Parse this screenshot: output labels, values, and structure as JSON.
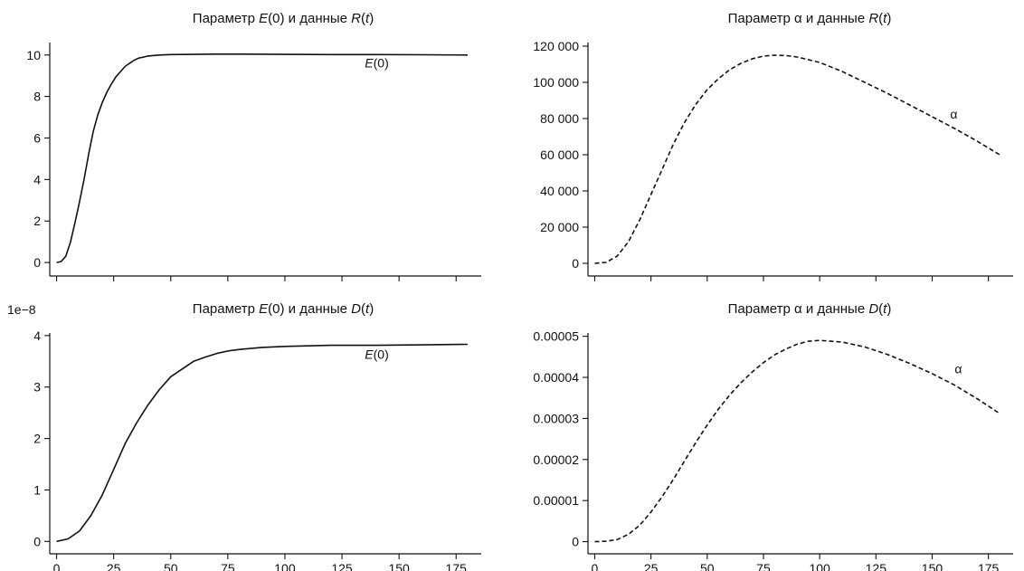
{
  "chart_data": [
    {
      "type": "line",
      "title_parts": [
        "Параметр ",
        "E",
        "(0) и данные ",
        "R",
        "(",
        "t",
        ")"
      ],
      "x": [
        0,
        2,
        4,
        6,
        8,
        10,
        12,
        14,
        16,
        18,
        20,
        22,
        24,
        26,
        28,
        30,
        32,
        34,
        36,
        38,
        40,
        45,
        50,
        60,
        70,
        80,
        100,
        120,
        140,
        160,
        180
      ],
      "series": [
        {
          "name": "E(0)",
          "values": [
            0,
            0.05,
            0.3,
            0.95,
            1.9,
            2.9,
            4.0,
            5.2,
            6.3,
            7.1,
            7.7,
            8.2,
            8.6,
            8.95,
            9.2,
            9.45,
            9.6,
            9.75,
            9.85,
            9.9,
            9.95,
            10.0,
            10.02,
            10.03,
            10.04,
            10.04,
            10.03,
            10.02,
            10.02,
            10.01,
            10.0
          ],
          "style": "solid"
        }
      ],
      "annotation": {
        "text": "E(0)",
        "x": 135,
        "y": 9.4
      },
      "xlim": [
        -3,
        186
      ],
      "ylim": [
        -0.3,
        10.6
      ],
      "xticks": [
        0,
        25,
        50,
        75,
        100,
        125,
        150,
        175
      ],
      "yticks": [
        0,
        2,
        4,
        6,
        8,
        10
      ],
      "ytick_labels": [
        "0",
        "2",
        "4",
        "6",
        "8",
        "10"
      ],
      "xtick_labels": [],
      "yscale_label": "",
      "grid": false
    },
    {
      "type": "line",
      "title_parts": [
        "Параметр α и данные ",
        "R",
        "(",
        "t",
        ")"
      ],
      "x": [
        0,
        5,
        10,
        15,
        20,
        25,
        30,
        35,
        40,
        45,
        50,
        55,
        60,
        65,
        70,
        75,
        80,
        85,
        90,
        100,
        110,
        120,
        130,
        140,
        150,
        160,
        170,
        180
      ],
      "series": [
        {
          "name": "α",
          "values": [
            0,
            500,
            4000,
            12000,
            24000,
            38000,
            52000,
            66000,
            78000,
            88000,
            96000,
            102000,
            107000,
            110500,
            113000,
            114500,
            115000,
            114800,
            114000,
            111000,
            106000,
            100000,
            94000,
            87500,
            81000,
            74500,
            67500,
            60000
          ],
          "style": "dashed"
        }
      ],
      "annotation": {
        "text": "α",
        "x": 158,
        "y": 80000
      },
      "xlim": [
        -3,
        186
      ],
      "ylim": [
        -3000,
        122000
      ],
      "xticks": [
        0,
        25,
        50,
        75,
        100,
        125,
        150,
        175
      ],
      "yticks": [
        0,
        20000,
        40000,
        60000,
        80000,
        100000,
        120000
      ],
      "ytick_labels": [
        "0",
        "20 000",
        "40 000",
        "60 000",
        "80 000",
        "100 000",
        "120 000"
      ],
      "xtick_labels": [],
      "yscale_label": "",
      "grid": false
    },
    {
      "type": "line",
      "title_parts": [
        "Параметр ",
        "E",
        "(0) и данные ",
        "D",
        "(",
        "t",
        ")"
      ],
      "x": [
        0,
        5,
        10,
        15,
        20,
        25,
        30,
        35,
        40,
        45,
        50,
        55,
        60,
        65,
        70,
        75,
        80,
        90,
        100,
        120,
        140,
        160,
        180
      ],
      "series": [
        {
          "name": "E(0)",
          "values": [
            0,
            0.05,
            0.2,
            0.5,
            0.9,
            1.4,
            1.9,
            2.3,
            2.65,
            2.95,
            3.2,
            3.35,
            3.5,
            3.58,
            3.65,
            3.7,
            3.73,
            3.77,
            3.79,
            3.81,
            3.81,
            3.82,
            3.83
          ],
          "style": "solid"
        }
      ],
      "annotation": {
        "text": "E(0)",
        "x": 135,
        "y": 3.55
      },
      "xlim": [
        -3,
        186
      ],
      "ylim": [
        -0.1,
        4.05
      ],
      "xticks": [
        0,
        25,
        50,
        75,
        100,
        125,
        150,
        175
      ],
      "yticks": [
        0,
        1,
        2,
        3,
        4
      ],
      "ytick_labels": [
        "0",
        "1",
        "2",
        "3",
        "4"
      ],
      "xtick_labels": [
        "0",
        "25",
        "50",
        "75",
        "100",
        "125",
        "150",
        "175"
      ],
      "yscale_label": "1e−8",
      "grid": false
    },
    {
      "type": "line",
      "title_parts": [
        "Параметр α и данные ",
        "D",
        "(",
        "t",
        ")"
      ],
      "x": [
        0,
        5,
        10,
        15,
        20,
        25,
        30,
        35,
        40,
        45,
        50,
        55,
        60,
        65,
        70,
        75,
        80,
        85,
        90,
        95,
        100,
        110,
        120,
        130,
        140,
        150,
        160,
        170,
        180
      ],
      "series": [
        {
          "name": "α",
          "values": [
            0,
            1e-07,
            5e-07,
            1.8e-06,
            4e-06,
            7.2e-06,
            1.1e-05,
            1.52e-05,
            1.97e-05,
            2.42e-05,
            2.84e-05,
            3.23e-05,
            3.57e-05,
            3.87e-05,
            4.13e-05,
            4.36e-05,
            4.55e-05,
            4.69e-05,
            4.81e-05,
            4.88e-05,
            4.9e-05,
            4.86e-05,
            4.74e-05,
            4.56e-05,
            4.34e-05,
            4.09e-05,
            3.81e-05,
            3.48e-05,
            3.12e-05
          ],
          "style": "dashed"
        }
      ],
      "annotation": {
        "text": "α",
        "x": 160,
        "y": 4.1e-05
      },
      "xlim": [
        -3,
        186
      ],
      "ylim": [
        -1.2e-06,
        5.08e-05
      ],
      "xticks": [
        0,
        25,
        50,
        75,
        100,
        125,
        150,
        175
      ],
      "yticks": [
        0,
        1e-05,
        2e-05,
        3e-05,
        4e-05,
        5e-05
      ],
      "ytick_labels": [
        "0",
        "0.00001",
        "0.00002",
        "0.00003",
        "0.00004",
        "0.00005"
      ],
      "xtick_labels": [
        "0",
        "25",
        "50",
        "75",
        "100",
        "125",
        "150",
        "175"
      ],
      "yscale_label": "",
      "grid": false
    }
  ]
}
